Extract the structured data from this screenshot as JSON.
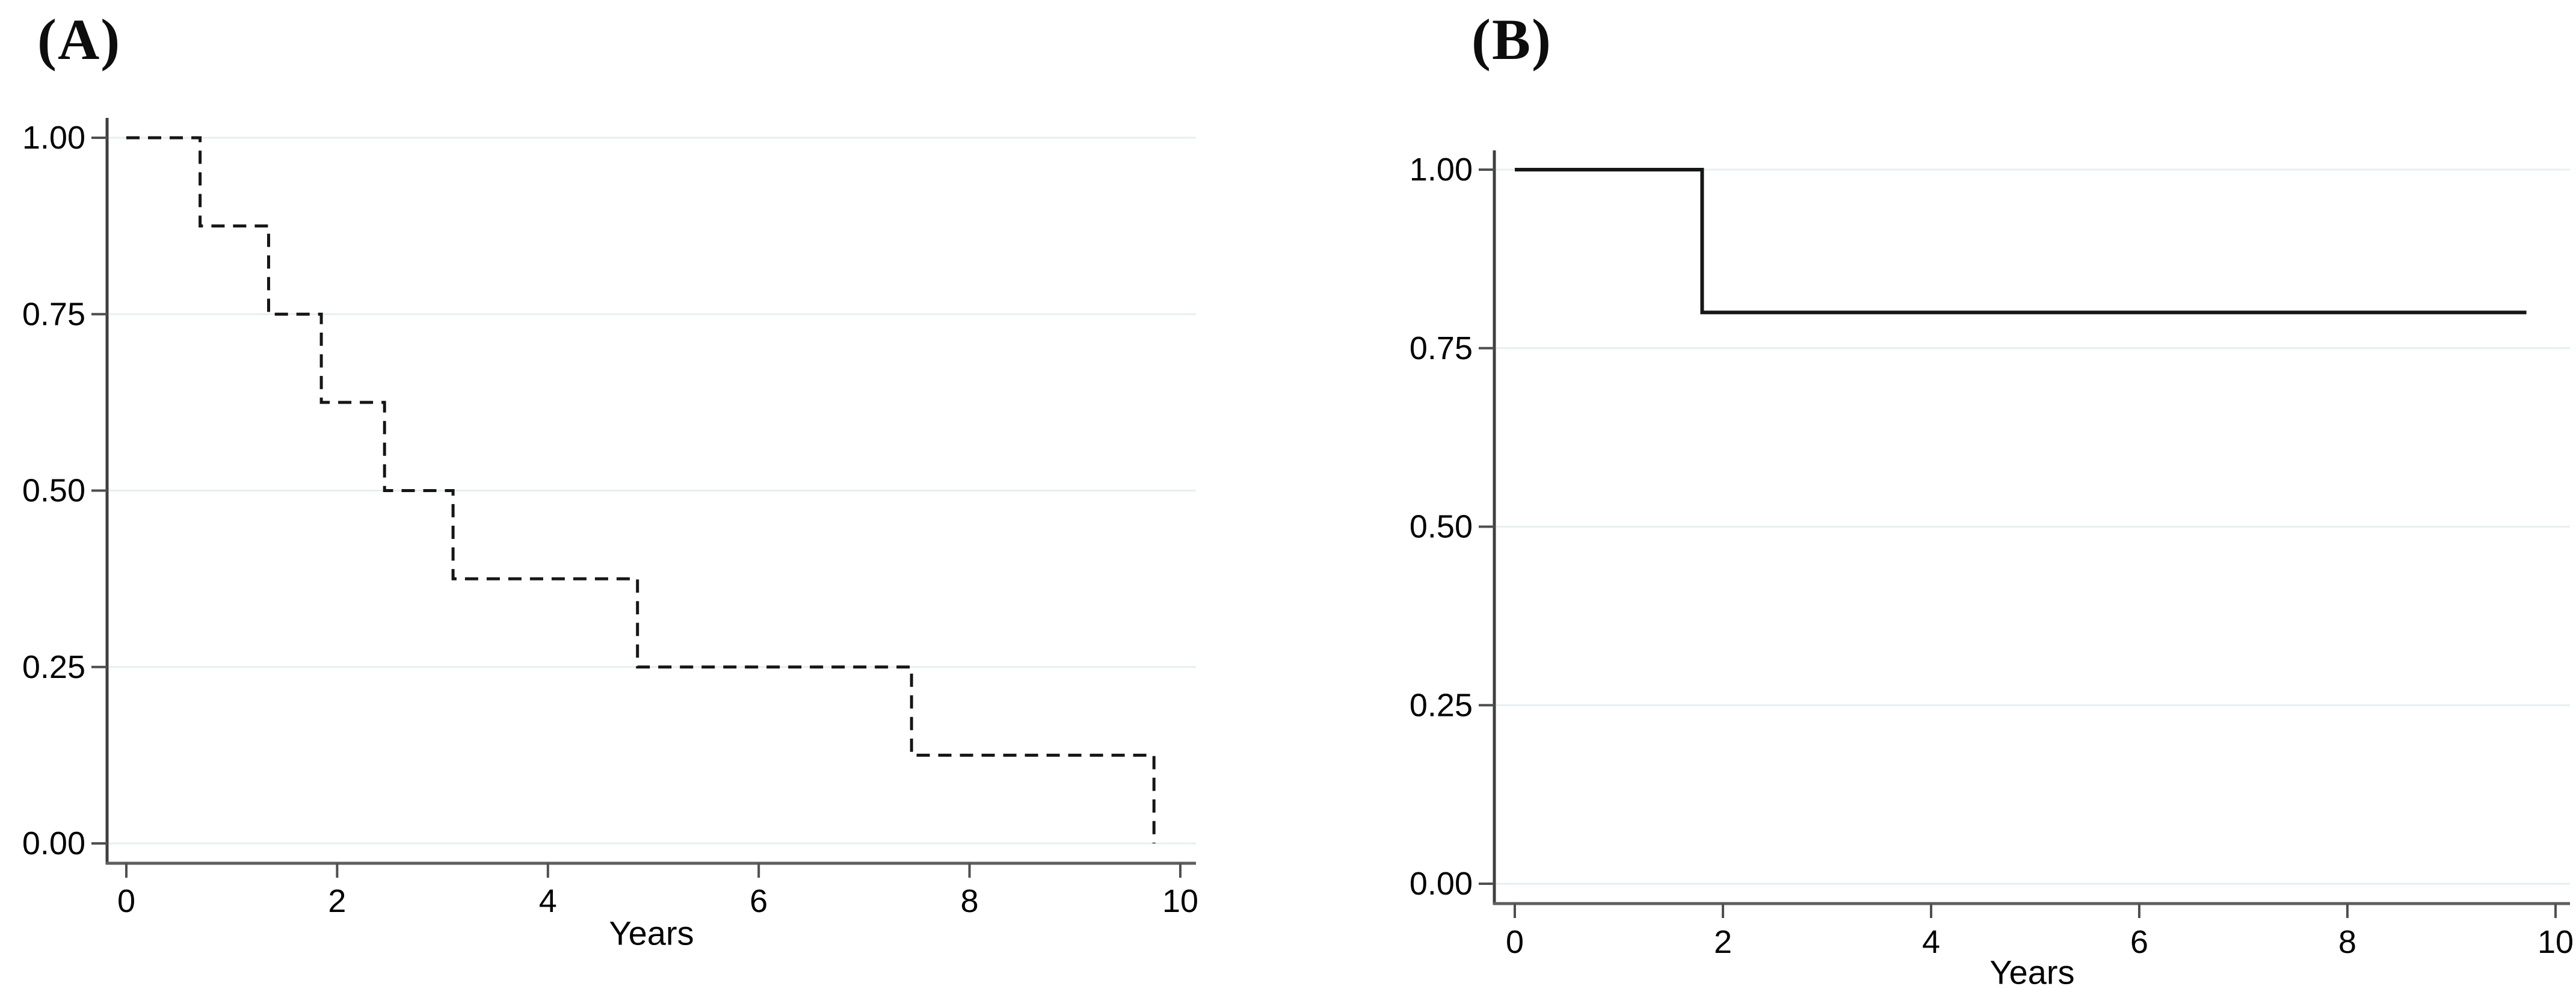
{
  "figure": {
    "background_color": "#ffffff",
    "gridline_color": "#e6eff1",
    "axis_color": "#5e5e5e",
    "curve_color": "#161616",
    "text_color": "#000000"
  },
  "chart_data": [
    {
      "type": "line",
      "subtype": "kaplan-meier-step",
      "title": "(A)",
      "xlabel": "Years",
      "ylabel": "",
      "xlim": [
        0,
        10.15
      ],
      "ylim": [
        0,
        1.0
      ],
      "x_ticks": [
        0,
        2,
        4,
        6,
        8,
        10
      ],
      "y_ticks": [
        1.0,
        0.75,
        0.5,
        0.25,
        0.0
      ],
      "y_tick_labels": [
        "1.00",
        "0.75",
        "0.50",
        "0.25",
        "0.00"
      ],
      "grid": "horizontal",
      "legend": "none",
      "line_dash": "dashed",
      "steps": [
        [
          0,
          1.0
        ],
        [
          0.7,
          1.0
        ],
        [
          0.7,
          0.875
        ],
        [
          1.35,
          0.875
        ],
        [
          1.35,
          0.75
        ],
        [
          1.85,
          0.75
        ],
        [
          1.85,
          0.625
        ],
        [
          2.45,
          0.625
        ],
        [
          2.45,
          0.5
        ],
        [
          3.1,
          0.5
        ],
        [
          3.1,
          0.375
        ],
        [
          4.85,
          0.375
        ],
        [
          4.85,
          0.25
        ],
        [
          7.45,
          0.25
        ],
        [
          7.45,
          0.125
        ],
        [
          9.75,
          0.125
        ],
        [
          9.75,
          0.0
        ]
      ],
      "event_times": [
        0.7,
        1.35,
        1.85,
        2.45,
        3.1,
        4.85,
        7.45,
        9.75
      ],
      "survival_after_event": [
        0.875,
        0.75,
        0.625,
        0.5,
        0.375,
        0.25,
        0.125,
        0.0
      ]
    },
    {
      "type": "line",
      "subtype": "kaplan-meier-step",
      "title": "(B)",
      "xlabel": "Years",
      "ylabel": "",
      "xlim": [
        0,
        10.15
      ],
      "ylim": [
        0,
        1.0
      ],
      "x_ticks": [
        0,
        2,
        4,
        6,
        8,
        10
      ],
      "y_ticks": [
        1.0,
        0.75,
        0.5,
        0.25,
        0.0
      ],
      "y_tick_labels": [
        "1.00",
        "0.75",
        "0.50",
        "0.25",
        "0.00"
      ],
      "grid": "horizontal",
      "legend": "none",
      "line_dash": "solid",
      "steps": [
        [
          0,
          1.0
        ],
        [
          1.8,
          1.0
        ],
        [
          1.8,
          0.8
        ],
        [
          9.72,
          0.8
        ]
      ],
      "event_times": [
        1.8
      ],
      "survival_after_event": [
        0.8
      ]
    }
  ]
}
